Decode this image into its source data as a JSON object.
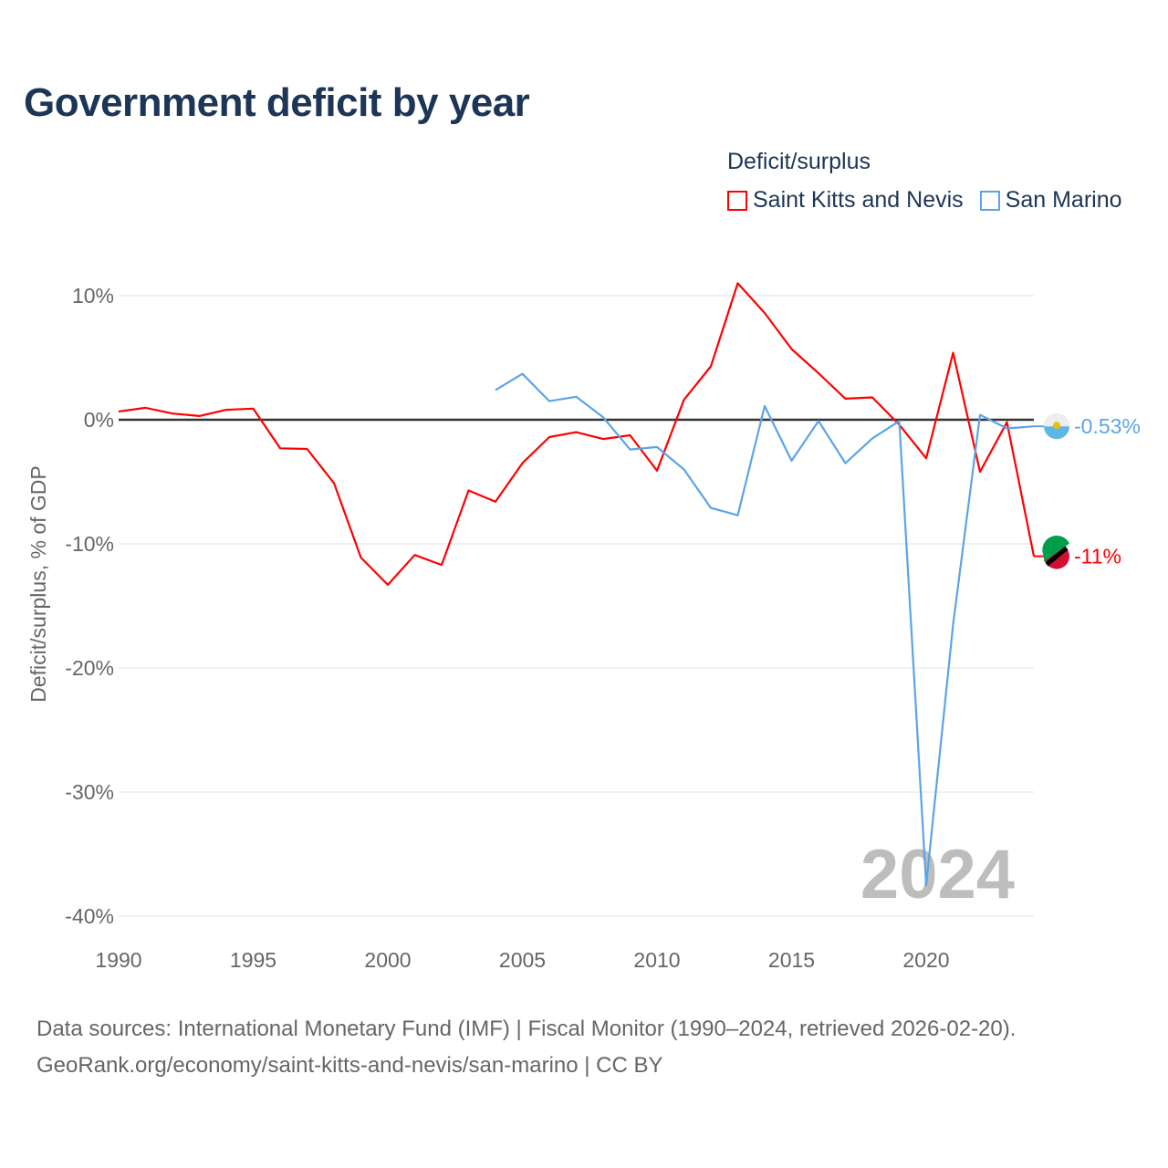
{
  "chart_data": {
    "type": "line",
    "title": "Government deficit by year",
    "legend_title": "Deficit/surplus",
    "legend_placement": "top-right",
    "ylabel": "Deficit/surplus, % of GDP",
    "xlabel": "",
    "xlim": [
      1990,
      2024
    ],
    "ylim": [
      -40,
      10
    ],
    "x_ticks": [
      "1990",
      "1995",
      "2000",
      "2005",
      "2010",
      "2015",
      "2020"
    ],
    "y_ticks": [
      {
        "v": 10,
        "label": "10%"
      },
      {
        "v": 0,
        "label": "0%"
      },
      {
        "v": -10,
        "label": "-10%"
      },
      {
        "v": -20,
        "label": "-20%"
      },
      {
        "v": -30,
        "label": "-30%"
      },
      {
        "v": -40,
        "label": "-40%"
      }
    ],
    "grid": true,
    "year_watermark": "2024",
    "series": [
      {
        "name": "Saint Kitts and Nevis",
        "color": "#ff0000",
        "end_label": "-11%",
        "start_year": 1990,
        "values": [
          0.66,
          0.96,
          0.5,
          0.3,
          0.8,
          0.9,
          -2.3,
          -2.35,
          -5.1,
          -11.1,
          -13.3,
          -10.9,
          -11.7,
          -5.7,
          -6.6,
          -3.5,
          -1.4,
          -1.0,
          -1.55,
          -1.25,
          -4.1,
          1.6,
          4.3,
          11.0,
          8.6,
          5.7,
          3.75,
          1.7,
          1.8,
          -0.4,
          -3.1,
          5.4,
          -4.2,
          -0.2,
          -11.0
        ]
      },
      {
        "name": "San Marino",
        "color": "#5ba4e8",
        "end_label": "-0.53%",
        "start_year": 2004,
        "values": [
          2.4,
          3.7,
          1.5,
          1.85,
          0.2,
          -2.4,
          -2.2,
          -4.0,
          -7.1,
          -7.7,
          1.1,
          -3.3,
          -0.1,
          -3.5,
          -1.5,
          -0.1,
          -37.5,
          -16.5,
          0.4,
          -0.7,
          -0.53
        ]
      }
    ]
  },
  "footer": {
    "line1": "Data sources: International Monetary Fund (IMF) | Fiscal Monitor (1990–2024, retrieved 2026-02-20).",
    "line2": "GeoRank.org/economy/saint-kitts-and-nevis/san-marino | CC BY"
  }
}
